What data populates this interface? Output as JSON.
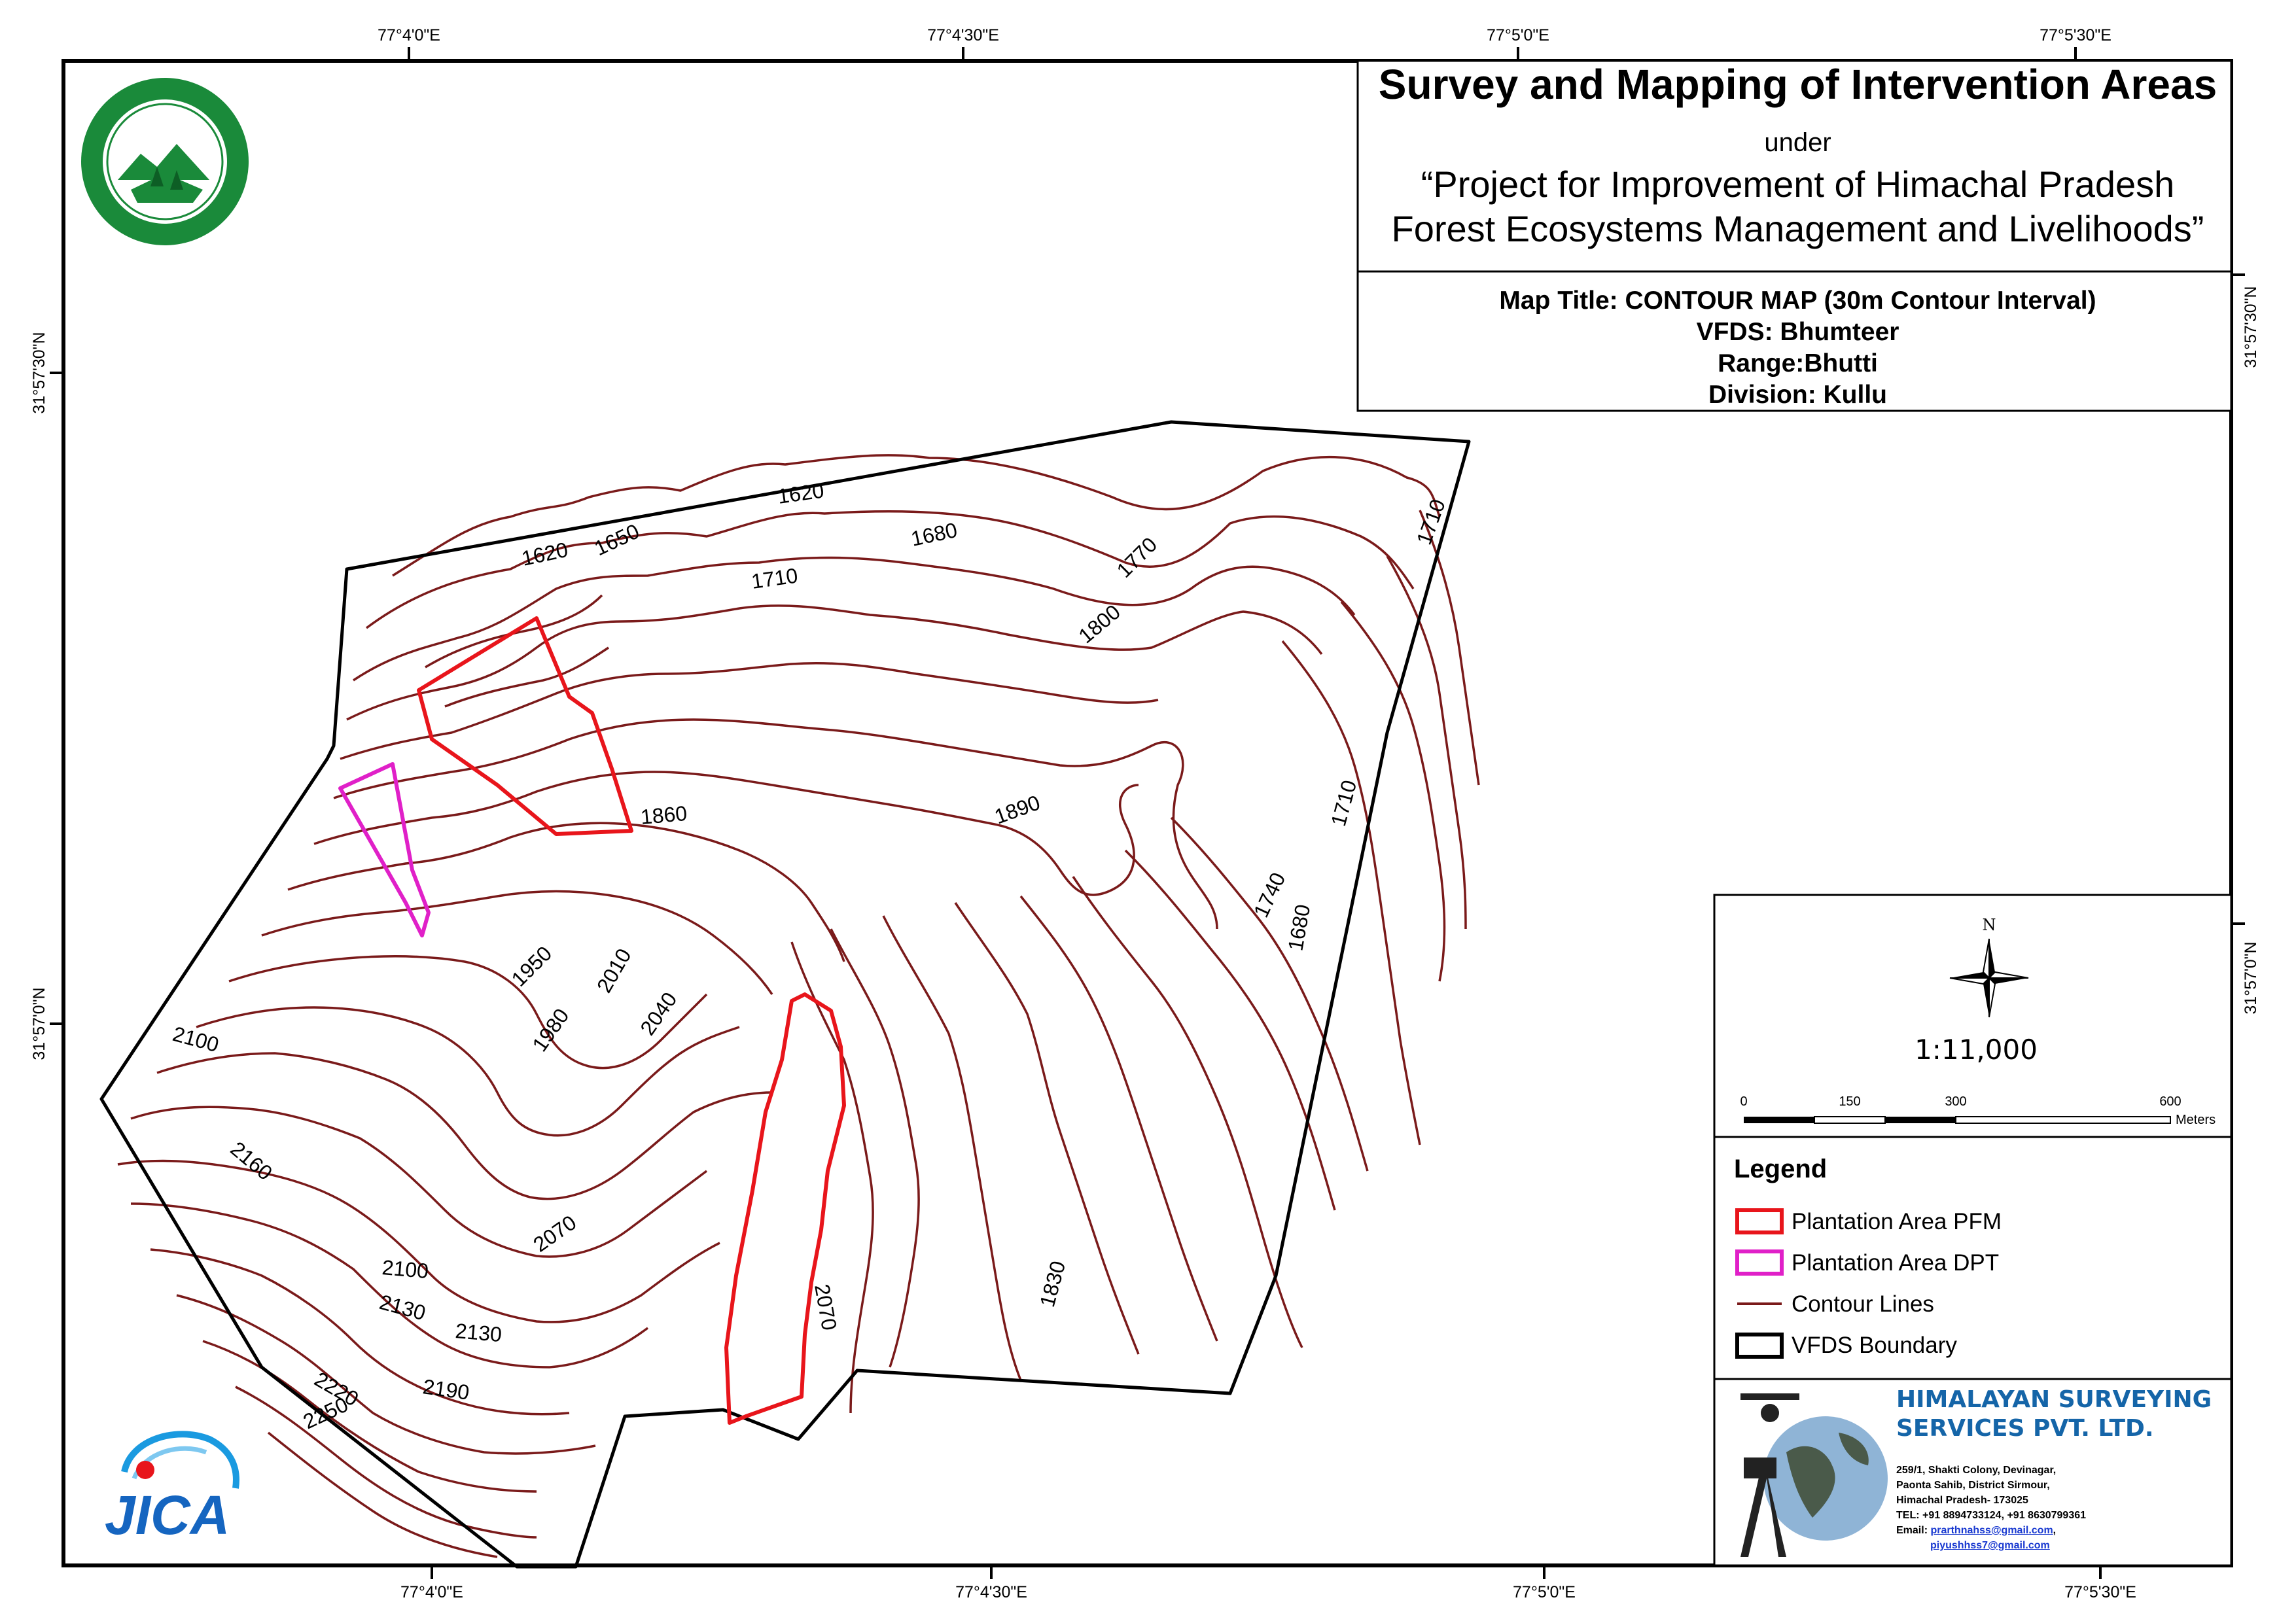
{
  "header": {
    "title": "Survey and Mapping of Intervention Areas",
    "under": "under",
    "project_line1": "“Project for Improvement of Himachal Pradesh",
    "project_line2": "Forest Ecosystems Management and Livelihoods”"
  },
  "map_info": {
    "map_title": "Map Title: CONTOUR MAP (30m Contour Interval)",
    "vfds": "VFDS: Bhumteer",
    "range": "Range:Bhutti",
    "division": "Division: Kullu"
  },
  "graticule": {
    "top": [
      "77°4'0\"E",
      "77°4'30\"E",
      "77°5'0\"E",
      "77°5'30\"E"
    ],
    "bottom": [
      "77°4'0\"E",
      "77°4'30\"E",
      "77°5'0\"E",
      "77°5'30\"E"
    ],
    "left": [
      "31°57'30\"N",
      "31°57'0\"N"
    ],
    "right": [
      "31°57'30\"N",
      "31°57'0\"N"
    ]
  },
  "contour_labels": [
    "1620",
    "1650",
    "1620",
    "1680",
    "1710",
    "1770",
    "1800",
    "1710",
    "1860",
    "1890",
    "1710",
    "1740",
    "1680",
    "1950",
    "2010",
    "1980",
    "2040",
    "2100",
    "2160",
    "2070",
    "2100",
    "2130",
    "2130",
    "2070",
    "1830",
    "2220",
    "2190",
    "2250"
  ],
  "north_arrow": {
    "label": "N"
  },
  "scale": {
    "ratio": "1:11,000",
    "ticks": [
      "0",
      "150",
      "300",
      "600"
    ],
    "unit": "Meters"
  },
  "legend": {
    "title": "Legend",
    "items": [
      {
        "label": "Plantation Area PFM",
        "color": "#e8151b"
      },
      {
        "label": "Plantation Area DPT",
        "color": "#e020c8"
      },
      {
        "label": "Contour Lines",
        "color": "#7a1a1a"
      },
      {
        "label": "VFDS Boundary",
        "color": "#000000"
      }
    ]
  },
  "company": {
    "name_line1": "HIMALAYAN SURVEYING",
    "name_line2": "SERVICES PVT. LTD.",
    "address1": "259/1, Shakti Colony, Devinagar,",
    "address2": "Paonta Sahib, District Sirmour,",
    "address3": "Himachal Pradesh- 173025",
    "tel": "TEL: +91 8894733124, +91 8630799361",
    "email_label": "Email: ",
    "email1": "prarthnahss@gmail.com",
    "email2": "piyushhss7@gmail.com"
  },
  "logos": {
    "jica": "JICA"
  }
}
